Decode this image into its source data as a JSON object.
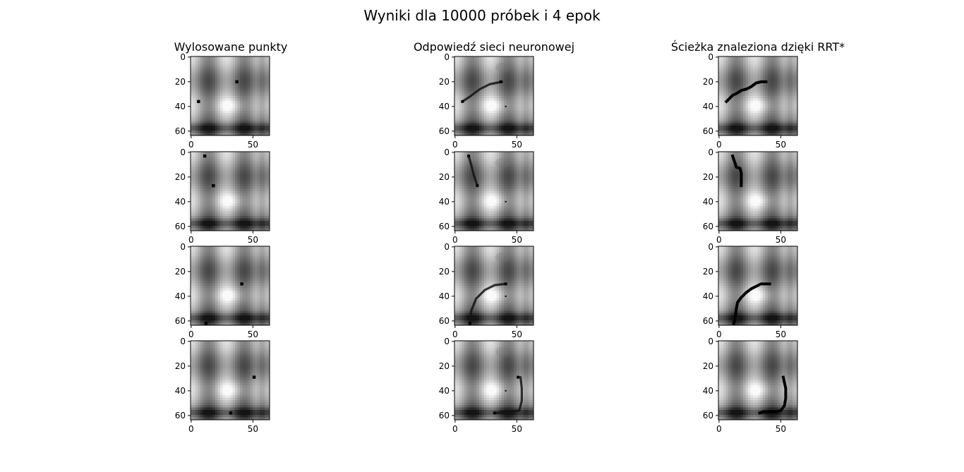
{
  "figure_title": "Wyniki dla 10000 próbek i 4 epok",
  "column_titles": [
    "Wylosowane punkty",
    "Odpowiedź sieci neuronowej",
    "Ścieżka znaleziona dzięki RRT*"
  ],
  "chart_data": [
    {
      "type": "heatmap",
      "name": "grid",
      "image_size": 64,
      "colormap": "gray",
      "xticks": [
        "0",
        "50"
      ],
      "yticks": [
        "0",
        "20",
        "40",
        "60"
      ],
      "xtick_values": [
        0,
        50
      ],
      "ytick_values": [
        0,
        20,
        40,
        60
      ],
      "rows": [
        {
          "points": [
            [
              37,
              20
            ],
            [
              6,
              36
            ]
          ],
          "nn_path": [
            [
              6,
              36
            ],
            [
              12,
              32
            ],
            [
              20,
              26
            ],
            [
              28,
              22
            ],
            [
              38,
              20
            ]
          ],
          "nn_dot": [
            41,
            40
          ],
          "rrt_path": [
            [
              6,
              36
            ],
            [
              8,
              34
            ],
            [
              11,
              31
            ],
            [
              15,
              29
            ],
            [
              18,
              27
            ],
            [
              22,
              26
            ],
            [
              26,
              24
            ],
            [
              30,
              21
            ],
            [
              34,
              20
            ],
            [
              38,
              20
            ]
          ]
        },
        {
          "points": [
            [
              11,
              3
            ],
            [
              18,
              27
            ]
          ],
          "nn_path": [
            [
              11,
              3
            ],
            [
              13,
              10
            ],
            [
              15,
              18
            ],
            [
              18,
              27
            ]
          ],
          "nn_dot": [
            41,
            40
          ],
          "rrt_path": [
            [
              11,
              3
            ],
            [
              12,
              6
            ],
            [
              13,
              9
            ],
            [
              14,
              12
            ],
            [
              17,
              13
            ],
            [
              18,
              17
            ],
            [
              18,
              27
            ]
          ]
        },
        {
          "points": [
            [
              41,
              30
            ],
            [
              12,
              62
            ]
          ],
          "nn_path": [
            [
              12,
              62
            ],
            [
              13,
              52
            ],
            [
              17,
              42
            ],
            [
              24,
              35
            ],
            [
              32,
              31
            ],
            [
              41,
              30
            ]
          ],
          "nn_dot": [
            41,
            40
          ],
          "rrt_path": [
            [
              12,
              62
            ],
            [
              13,
              57
            ],
            [
              14,
              50
            ],
            [
              15,
              45
            ],
            [
              18,
              41
            ],
            [
              22,
              37
            ],
            [
              26,
              34
            ],
            [
              30,
              32
            ],
            [
              34,
              30
            ],
            [
              41,
              30
            ]
          ]
        },
        {
          "points": [
            [
              51,
              29
            ],
            [
              32,
              58
            ]
          ],
          "nn_path": [
            [
              33,
              58
            ],
            [
              42,
              57
            ],
            [
              52,
              56
            ],
            [
              54,
              48
            ],
            [
              54,
              38
            ],
            [
              53,
              29
            ]
          ],
          "nn_dot": [
            41,
            40
          ],
          "rrt_path": [
            [
              33,
              58
            ],
            [
              36,
              57
            ],
            [
              46,
              57
            ],
            [
              50,
              56
            ],
            [
              53,
              52
            ],
            [
              54,
              46
            ],
            [
              54,
              38
            ],
            [
              52,
              29
            ]
          ]
        }
      ]
    }
  ]
}
